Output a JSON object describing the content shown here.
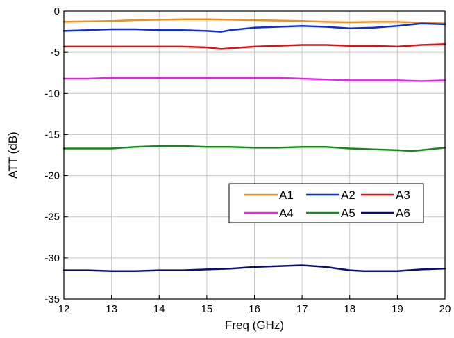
{
  "chart_data": {
    "type": "line",
    "xlabel": "Freq (GHz)",
    "ylabel": "ATT (dB)",
    "xlim": [
      12,
      20
    ],
    "ylim": [
      -35,
      0
    ],
    "xticks": [
      12,
      13,
      14,
      15,
      16,
      17,
      18,
      19,
      20
    ],
    "yticks": [
      0,
      -5,
      -10,
      -15,
      -20,
      -25,
      -30,
      -35
    ],
    "grid": true,
    "legend_position": "lower-right",
    "series": [
      {
        "name": "A1",
        "color": "#f28e1c",
        "x": [
          12,
          12.5,
          13,
          13.5,
          14,
          14.5,
          15,
          15.5,
          16,
          16.5,
          17,
          17.5,
          18,
          18.5,
          19,
          19.5,
          20
        ],
        "y": [
          -1.3,
          -1.25,
          -1.2,
          -1.1,
          -1.05,
          -1.0,
          -1.0,
          -1.05,
          -1.1,
          -1.15,
          -1.2,
          -1.3,
          -1.35,
          -1.3,
          -1.3,
          -1.4,
          -1.5
        ]
      },
      {
        "name": "A2",
        "color": "#0a2ee6",
        "x": [
          12,
          12.5,
          13,
          13.5,
          14,
          14.5,
          15,
          15.3,
          15.5,
          16,
          16.5,
          17,
          17.5,
          18,
          18.5,
          19,
          19.5,
          20
        ],
        "y": [
          -2.4,
          -2.3,
          -2.2,
          -2.2,
          -2.3,
          -2.3,
          -2.4,
          -2.5,
          -2.3,
          -2.0,
          -1.9,
          -1.8,
          -1.9,
          -2.1,
          -2.0,
          -1.8,
          -1.5,
          -1.6
        ]
      },
      {
        "name": "A3",
        "color": "#e60f0f",
        "x": [
          12,
          12.5,
          13,
          13.5,
          14,
          14.5,
          15,
          15.3,
          15.5,
          16,
          16.5,
          17,
          17.5,
          18,
          18.5,
          19,
          19.5,
          20
        ],
        "y": [
          -4.3,
          -4.3,
          -4.3,
          -4.3,
          -4.3,
          -4.3,
          -4.4,
          -4.6,
          -4.5,
          -4.3,
          -4.2,
          -4.1,
          -4.1,
          -4.2,
          -4.2,
          -4.3,
          -4.1,
          -4.0
        ]
      },
      {
        "name": "A4",
        "color": "#f01ef0",
        "x": [
          12,
          12.5,
          13,
          13.5,
          14,
          14.5,
          15,
          15.5,
          16,
          16.5,
          17,
          17.5,
          18,
          18.5,
          19,
          19.5,
          20
        ],
        "y": [
          -8.2,
          -8.2,
          -8.1,
          -8.1,
          -8.1,
          -8.1,
          -8.1,
          -8.1,
          -8.1,
          -8.1,
          -8.2,
          -8.3,
          -8.4,
          -8.4,
          -8.4,
          -8.5,
          -8.4
        ]
      },
      {
        "name": "A5",
        "color": "#168a16",
        "x": [
          12,
          12.5,
          13,
          13.5,
          14,
          14.5,
          15,
          15.5,
          16,
          16.5,
          17,
          17.5,
          18,
          18.5,
          19,
          19.3,
          19.5,
          20
        ],
        "y": [
          -16.7,
          -16.7,
          -16.7,
          -16.5,
          -16.4,
          -16.4,
          -16.5,
          -16.5,
          -16.6,
          -16.6,
          -16.5,
          -16.5,
          -16.7,
          -16.8,
          -16.9,
          -17.0,
          -16.9,
          -16.6
        ]
      },
      {
        "name": "A6",
        "color": "#0a0f78",
        "x": [
          12,
          12.5,
          13,
          13.5,
          14,
          14.5,
          15,
          15.5,
          16,
          16.5,
          17,
          17.5,
          18,
          18.3,
          18.5,
          19,
          19.5,
          20
        ],
        "y": [
          -31.5,
          -31.5,
          -31.6,
          -31.6,
          -31.5,
          -31.5,
          -31.4,
          -31.3,
          -31.1,
          -31.0,
          -30.9,
          -31.1,
          -31.5,
          -31.6,
          -31.6,
          -31.6,
          -31.4,
          -31.3
        ]
      }
    ]
  }
}
